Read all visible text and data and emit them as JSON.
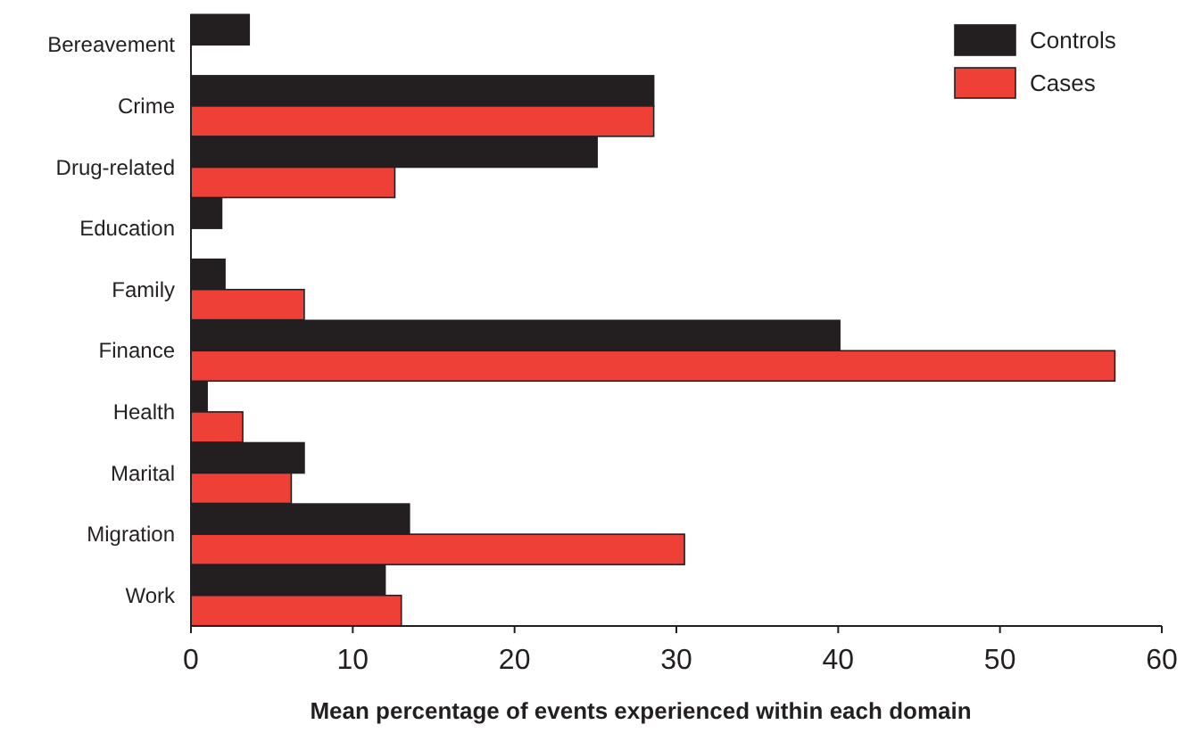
{
  "chart_data": {
    "type": "bar",
    "orientation": "horizontal",
    "xlabel": "Mean percentage of events experienced within each domain",
    "categories": [
      "Bereavement",
      "Crime",
      "Drug-related",
      "Education",
      "Family",
      "Finance",
      "Health",
      "Marital",
      "Migration",
      "Work"
    ],
    "series": [
      {
        "name": "Controls",
        "color": "#231f20",
        "values": [
          3.6,
          28.6,
          25.1,
          1.9,
          2.1,
          40.1,
          1.0,
          7.0,
          13.5,
          12.0
        ]
      },
      {
        "name": "Cases",
        "color": "#ee4036",
        "values": [
          null,
          28.6,
          12.6,
          null,
          7.0,
          57.1,
          3.2,
          6.2,
          30.5,
          13.0
        ]
      }
    ],
    "xlim": [
      0,
      60
    ],
    "xticks": [
      0,
      10,
      20,
      30,
      40,
      50,
      60
    ],
    "legend": "top right",
    "grid": false
  }
}
